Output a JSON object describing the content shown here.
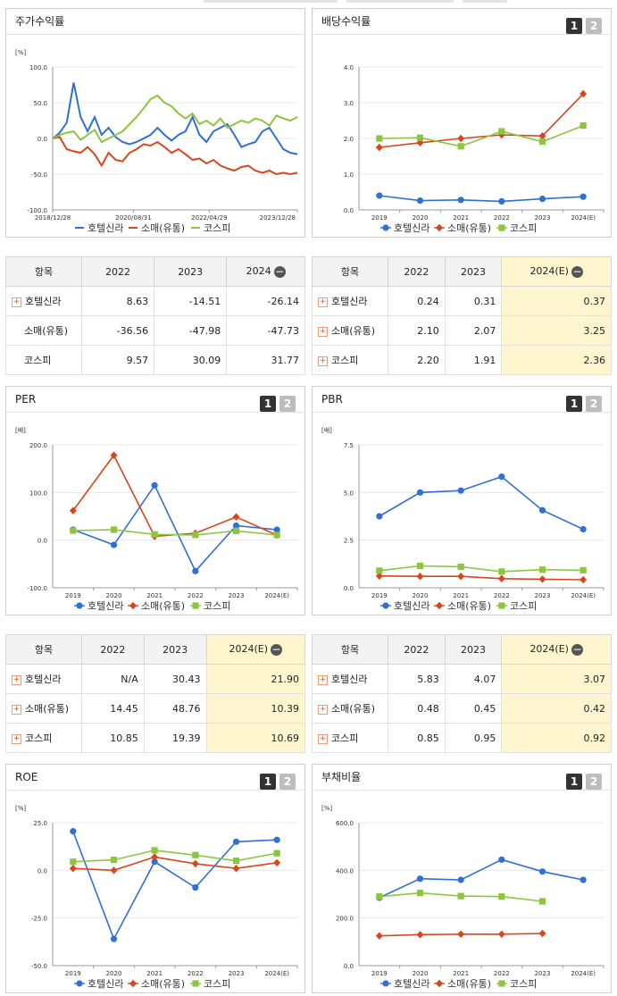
{
  "colors": {
    "hotel": "#2f6fd6",
    "retail": "#d8461c",
    "kospi": "#8cc63f"
  },
  "legend": [
    "호텔신라",
    "소매(유통)",
    "코스피"
  ],
  "panels": {
    "stock": {
      "title": "주가수익률"
    },
    "dividend": {
      "title": "배당수익률",
      "btn1": "1",
      "btn2": "2"
    },
    "per": {
      "title": "PER",
      "btn1": "1",
      "btn2": "2"
    },
    "pbr": {
      "title": "PBR",
      "btn1": "1",
      "btn2": "2"
    },
    "roe": {
      "title": "ROE",
      "btn1": "1",
      "btn2": "2"
    },
    "debt": {
      "title": "부채비율",
      "btn1": "1",
      "btn2": "2"
    }
  },
  "tables": {
    "stock": {
      "header": [
        "항목",
        "2022",
        "2023",
        "2024"
      ],
      "rows": [
        [
          "호텔신라",
          "8.63",
          "-14.51",
          "-26.14"
        ],
        [
          "소매(유통)",
          "-36.56",
          "-47.98",
          "-47.73"
        ],
        [
          "코스피",
          "9.57",
          "30.09",
          "31.77"
        ]
      ]
    },
    "dividend": {
      "header": [
        "항목",
        "2022",
        "2023",
        "2024(E)"
      ],
      "rows": [
        [
          "호텔신라",
          "0.24",
          "0.31",
          "0.37"
        ],
        [
          "소매(유통)",
          "2.10",
          "2.07",
          "3.25"
        ],
        [
          "코스피",
          "2.20",
          "1.91",
          "2.36"
        ]
      ]
    },
    "per": {
      "header": [
        "항목",
        "2022",
        "2023",
        "2024(E)"
      ],
      "rows": [
        [
          "호텔신라",
          "N/A",
          "30.43",
          "21.90"
        ],
        [
          "소매(유통)",
          "14.45",
          "48.76",
          "10.39"
        ],
        [
          "코스피",
          "10.85",
          "19.39",
          "10.69"
        ]
      ]
    },
    "pbr": {
      "header": [
        "항목",
        "2022",
        "2023",
        "2024(E)"
      ],
      "rows": [
        [
          "호텔신라",
          "5.83",
          "4.07",
          "3.07"
        ],
        [
          "소매(유통)",
          "0.48",
          "0.45",
          "0.42"
        ],
        [
          "코스피",
          "0.85",
          "0.95",
          "0.92"
        ]
      ]
    }
  },
  "chart_data": [
    {
      "id": "stock",
      "type": "line",
      "unit": "[%]",
      "yticks": [
        "100.0",
        "50.0",
        "0.0",
        "-50.0",
        "-100.0"
      ],
      "ylim": [
        -100,
        100
      ],
      "xticks": [
        "2018/12/28",
        "2020/08/31",
        "2022/04/29",
        "2023/12/28"
      ],
      "x_labels_pos": [
        0,
        0.33,
        0.64,
        1
      ],
      "series": [
        {
          "name": "호텔신라",
          "values": [
            0,
            8,
            22,
            78,
            30,
            10,
            30,
            5,
            15,
            2,
            -5,
            -8,
            -5,
            0,
            5,
            15,
            5,
            -3,
            5,
            10,
            30,
            5,
            -5,
            10,
            15,
            20,
            5,
            -12,
            -8,
            -5,
            10,
            15,
            0,
            -15,
            -20,
            -22
          ]
        },
        {
          "name": "소매(유통)",
          "values": [
            0,
            2,
            -15,
            -18,
            -20,
            -12,
            -22,
            -38,
            -20,
            -30,
            -32,
            -20,
            -15,
            -8,
            -10,
            -5,
            -12,
            -20,
            -15,
            -22,
            -30,
            -28,
            -35,
            -30,
            -38,
            -42,
            -45,
            -40,
            -38,
            -45,
            -48,
            -45,
            -50,
            -48,
            -50,
            -48
          ]
        },
        {
          "name": "코스피",
          "values": [
            0,
            5,
            8,
            10,
            -2,
            5,
            12,
            -5,
            0,
            5,
            10,
            20,
            30,
            42,
            55,
            60,
            50,
            45,
            35,
            28,
            35,
            20,
            25,
            18,
            28,
            15,
            20,
            25,
            22,
            28,
            25,
            18,
            32,
            28,
            25,
            30
          ]
        }
      ]
    },
    {
      "id": "dividend",
      "type": "line",
      "unit": "",
      "yticks": [
        "4.0",
        "3.0",
        "2.0",
        "1.0",
        "0.0"
      ],
      "ylim": [
        0,
        4
      ],
      "xticks": [
        "2019",
        "2020",
        "2021",
        "2022",
        "2023",
        "2024(E)"
      ],
      "series": [
        {
          "name": "호텔신라",
          "values": [
            0.4,
            0.26,
            0.28,
            0.24,
            0.31,
            0.37
          ]
        },
        {
          "name": "소매(유통)",
          "values": [
            1.75,
            1.88,
            2.0,
            2.1,
            2.07,
            3.25
          ]
        },
        {
          "name": "코스피",
          "values": [
            2.0,
            2.02,
            1.78,
            2.2,
            1.91,
            2.36
          ]
        }
      ]
    },
    {
      "id": "per",
      "type": "line",
      "unit": "[배]",
      "yticks": [
        "200.0",
        "100.0",
        "0.0",
        "-100.0"
      ],
      "ylim": [
        -100,
        200
      ],
      "xticks": [
        "2019",
        "2020",
        "2021",
        "2022",
        "2023",
        "2024(E)"
      ],
      "series": [
        {
          "name": "호텔신라",
          "values": [
            22,
            -10,
            115,
            -65,
            30.43,
            21.9
          ]
        },
        {
          "name": "소매(유통)",
          "values": [
            62,
            178,
            8,
            14.45,
            48.76,
            10.39
          ]
        },
        {
          "name": "코스피",
          "values": [
            20,
            22,
            12,
            10.85,
            19.39,
            10.69
          ]
        }
      ]
    },
    {
      "id": "pbr",
      "type": "line",
      "unit": "[배]",
      "yticks": [
        "7.5",
        "5.0",
        "2.5",
        "0.0"
      ],
      "ylim": [
        0,
        7.5
      ],
      "xticks": [
        "2019",
        "2020",
        "2021",
        "2022",
        "2023",
        "2024(E)"
      ],
      "series": [
        {
          "name": "호텔신라",
          "values": [
            3.75,
            5.0,
            5.1,
            5.83,
            4.07,
            3.07
          ]
        },
        {
          "name": "소매(유통)",
          "values": [
            0.62,
            0.6,
            0.6,
            0.48,
            0.45,
            0.42
          ]
        },
        {
          "name": "코스피",
          "values": [
            0.9,
            1.15,
            1.1,
            0.85,
            0.95,
            0.92
          ]
        }
      ]
    },
    {
      "id": "roe",
      "type": "line",
      "unit": "[%]",
      "yticks": [
        "25.0",
        "0.0",
        "-25.0",
        "-50.0"
      ],
      "ylim": [
        -50,
        25
      ],
      "xticks": [
        "2019",
        "2020",
        "2021",
        "2022",
        "2023",
        "2024(E)"
      ],
      "series": [
        {
          "name": "호텔신라",
          "values": [
            20.5,
            -36,
            4.5,
            -9,
            15,
            16
          ]
        },
        {
          "name": "소매(유통)",
          "values": [
            1,
            0,
            7,
            3.5,
            1,
            4
          ]
        },
        {
          "name": "코스피",
          "values": [
            4.5,
            5.5,
            10.5,
            8,
            5,
            9
          ]
        }
      ]
    },
    {
      "id": "debt",
      "type": "line",
      "unit": "[%]",
      "yticks": [
        "600.0",
        "400.0",
        "200.0",
        "0.0"
      ],
      "ylim": [
        0,
        600
      ],
      "xticks": [
        "2019",
        "2020",
        "2021",
        "2022",
        "2023",
        "2024(E)"
      ],
      "series": [
        {
          "name": "호텔신라",
          "values": [
            285,
            365,
            360,
            445,
            395,
            360
          ]
        },
        {
          "name": "소매(유통)",
          "values": [
            125,
            130,
            132,
            132,
            135,
            null
          ]
        },
        {
          "name": "코스피",
          "values": [
            290,
            305,
            292,
            290,
            270,
            null
          ]
        }
      ]
    }
  ]
}
